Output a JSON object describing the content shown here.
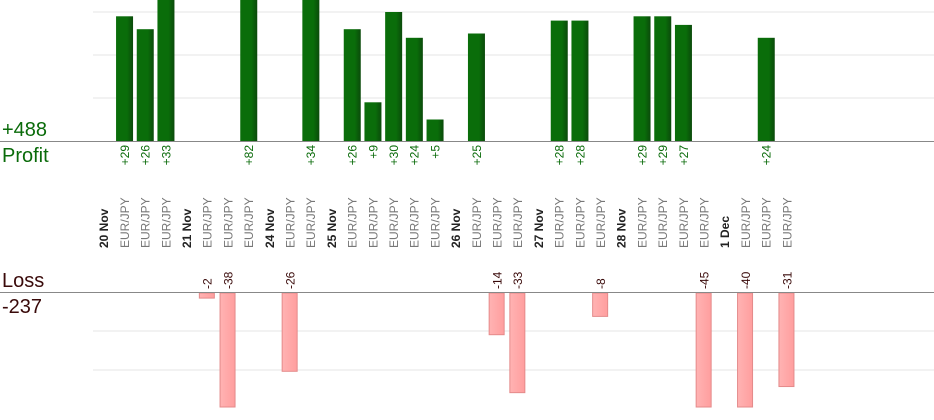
{
  "summary": {
    "profit_total": "+488",
    "profit_label": "Profit",
    "loss_label": "Loss",
    "loss_total": "-237"
  },
  "colors": {
    "profit_bar": "#0a6d0a",
    "profit_bar_dark": "#0b4a0b",
    "profit_text": "#0a6b0a",
    "loss_bar": "#ffb3b3",
    "loss_bar_border": "#e48a8a",
    "loss_text": "#3a0a0a",
    "axis": "#888888",
    "grid": "#e6e6e6",
    "date_text": "#222222",
    "pair_text": "#777777"
  },
  "chart_data": {
    "type": "bar",
    "title": "",
    "ylabel": "",
    "grid": true,
    "profit_ylim": [
      0,
      40
    ],
    "loss_ylim": [
      -40,
      0
    ],
    "columns": [
      {
        "type": "date",
        "label": "20 Nov"
      },
      {
        "type": "trade",
        "pair": "EUR/JPY",
        "value": 29,
        "label": "+29"
      },
      {
        "type": "trade",
        "pair": "EUR/JPY",
        "value": 26,
        "label": "+26"
      },
      {
        "type": "trade",
        "pair": "EUR/JPY",
        "value": 33,
        "label": "+33"
      },
      {
        "type": "date",
        "label": "21 Nov"
      },
      {
        "type": "trade",
        "pair": "EUR/JPY",
        "value": -2,
        "label": "-2"
      },
      {
        "type": "trade",
        "pair": "EUR/JPY",
        "value": -38,
        "label": "-38"
      },
      {
        "type": "trade",
        "pair": "EUR/JPY",
        "value": 82,
        "label": "+82"
      },
      {
        "type": "date",
        "label": "24 Nov"
      },
      {
        "type": "trade",
        "pair": "EUR/JPY",
        "value": -26,
        "label": "-26"
      },
      {
        "type": "trade",
        "pair": "EUR/JPY",
        "value": 34,
        "label": "+34"
      },
      {
        "type": "date",
        "label": "25 Nov"
      },
      {
        "type": "trade",
        "pair": "EUR/JPY",
        "value": 26,
        "label": "+26"
      },
      {
        "type": "trade",
        "pair": "EUR/JPY",
        "value": 9,
        "label": "+9"
      },
      {
        "type": "trade",
        "pair": "EUR/JPY",
        "value": 30,
        "label": "+30"
      },
      {
        "type": "trade",
        "pair": "EUR/JPY",
        "value": 24,
        "label": "+24"
      },
      {
        "type": "trade",
        "pair": "EUR/JPY",
        "value": 5,
        "label": "+5"
      },
      {
        "type": "date",
        "label": "26 Nov"
      },
      {
        "type": "trade",
        "pair": "EUR/JPY",
        "value": 25,
        "label": "+25"
      },
      {
        "type": "trade",
        "pair": "EUR/JPY",
        "value": -14,
        "label": "-14"
      },
      {
        "type": "trade",
        "pair": "EUR/JPY",
        "value": -33,
        "label": "-33"
      },
      {
        "type": "date",
        "label": "27 Nov"
      },
      {
        "type": "trade",
        "pair": "EUR/JPY",
        "value": 28,
        "label": "+28"
      },
      {
        "type": "trade",
        "pair": "EUR/JPY",
        "value": 28,
        "label": "+28"
      },
      {
        "type": "trade",
        "pair": "EUR/JPY",
        "value": -8,
        "label": "-8"
      },
      {
        "type": "date",
        "label": "28 Nov"
      },
      {
        "type": "trade",
        "pair": "EUR/JPY",
        "value": 29,
        "label": "+29"
      },
      {
        "type": "trade",
        "pair": "EUR/JPY",
        "value": 29,
        "label": "+29"
      },
      {
        "type": "trade",
        "pair": "EUR/JPY",
        "value": 27,
        "label": "+27"
      },
      {
        "type": "trade",
        "pair": "EUR/JPY",
        "value": -45,
        "label": "-45"
      },
      {
        "type": "date",
        "label": "1 Dec"
      },
      {
        "type": "trade",
        "pair": "EUR/JPY",
        "value": -40,
        "label": "-40"
      },
      {
        "type": "trade",
        "pair": "EUR/JPY",
        "value": 24,
        "label": "+24"
      },
      {
        "type": "trade",
        "pair": "EUR/JPY",
        "value": -31,
        "label": "-31"
      }
    ]
  }
}
